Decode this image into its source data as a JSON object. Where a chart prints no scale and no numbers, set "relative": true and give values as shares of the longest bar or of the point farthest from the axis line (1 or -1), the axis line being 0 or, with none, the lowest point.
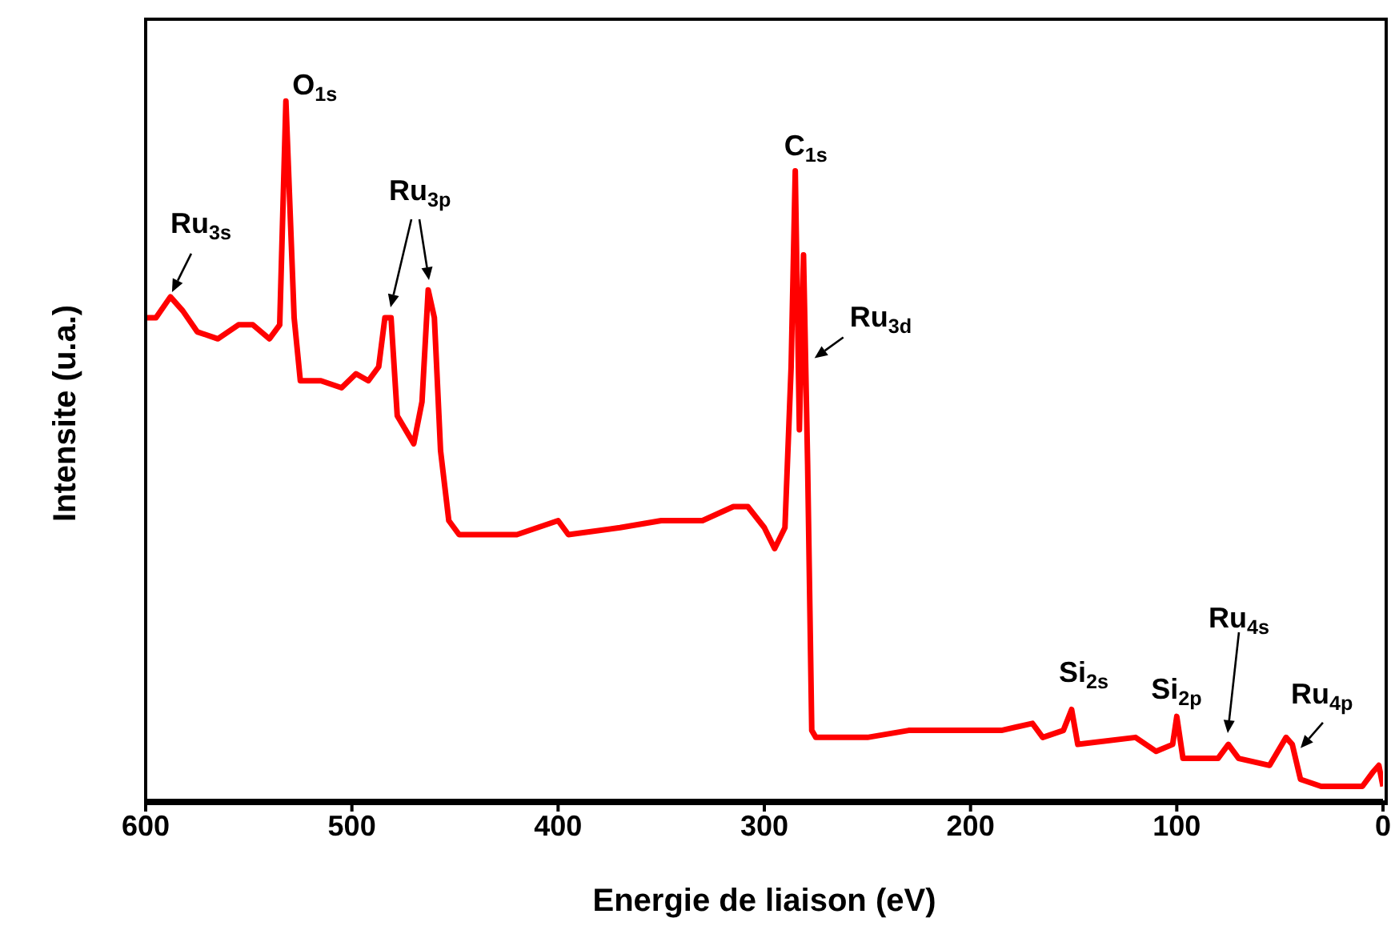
{
  "chart_data": {
    "type": "line",
    "relative": true,
    "xlabel": "Energie de liaison (eV)",
    "ylabel": "Intensite (u.a.)",
    "xlim": [
      600,
      0
    ],
    "xticks": [
      600,
      500,
      400,
      300,
      200,
      100,
      0
    ],
    "grid": false,
    "legend": false,
    "marker": "none",
    "line_style": "solid",
    "x": [
      600,
      595,
      588,
      582,
      575,
      565,
      555,
      548,
      540,
      535,
      532,
      528,
      525,
      515,
      505,
      498,
      492,
      487,
      484,
      481,
      478,
      470,
      466,
      463,
      460,
      457,
      453,
      448,
      440,
      420,
      400,
      395,
      370,
      350,
      330,
      315,
      308,
      300,
      295,
      290,
      287,
      285,
      283,
      281,
      279,
      277,
      275,
      250,
      230,
      200,
      185,
      170,
      165,
      155,
      151,
      148,
      120,
      115,
      110,
      102,
      100,
      97,
      80,
      75,
      70,
      55,
      47,
      44,
      40,
      30,
      20,
      10,
      5,
      2,
      0
    ],
    "series": [
      {
        "color": "#ff0000",
        "values": [
          0.69,
          0.69,
          0.72,
          0.7,
          0.67,
          0.66,
          0.68,
          0.68,
          0.66,
          0.68,
          1.0,
          0.69,
          0.6,
          0.6,
          0.59,
          0.61,
          0.6,
          0.62,
          0.69,
          0.69,
          0.55,
          0.51,
          0.57,
          0.73,
          0.69,
          0.5,
          0.4,
          0.38,
          0.38,
          0.38,
          0.4,
          0.38,
          0.39,
          0.4,
          0.4,
          0.42,
          0.42,
          0.39,
          0.36,
          0.39,
          0.62,
          0.9,
          0.53,
          0.78,
          0.48,
          0.1,
          0.09,
          0.09,
          0.1,
          0.1,
          0.1,
          0.11,
          0.09,
          0.1,
          0.13,
          0.08,
          0.09,
          0.08,
          0.07,
          0.08,
          0.12,
          0.06,
          0.06,
          0.08,
          0.06,
          0.05,
          0.09,
          0.08,
          0.03,
          0.02,
          0.02,
          0.02,
          0.04,
          0.05,
          0.02
        ]
      }
    ],
    "annotations": [
      {
        "text": "O$_{1s}$",
        "x": 532,
        "y": 1.0
      },
      {
        "text": "Ru$_{3s}$",
        "x": 588,
        "y": 0.72
      },
      "Ru$_{3p}$",
      {
        "text": "C$_{1s}$",
        "x": 285,
        "y": 0.9
      },
      {
        "text": "Ru$_{3d}$",
        "x": 278,
        "y": 0.63
      },
      {
        "text": "Si$_{2s}$",
        "x": 151,
        "y": 0.13
      },
      {
        "text": "Si$_{2p}$",
        "x": 100,
        "y": 0.12
      },
      "Ru$_{4s}$",
      {
        "text": "Ru$_{4p}$",
        "x": 40,
        "y": 0.07
      }
    ]
  }
}
